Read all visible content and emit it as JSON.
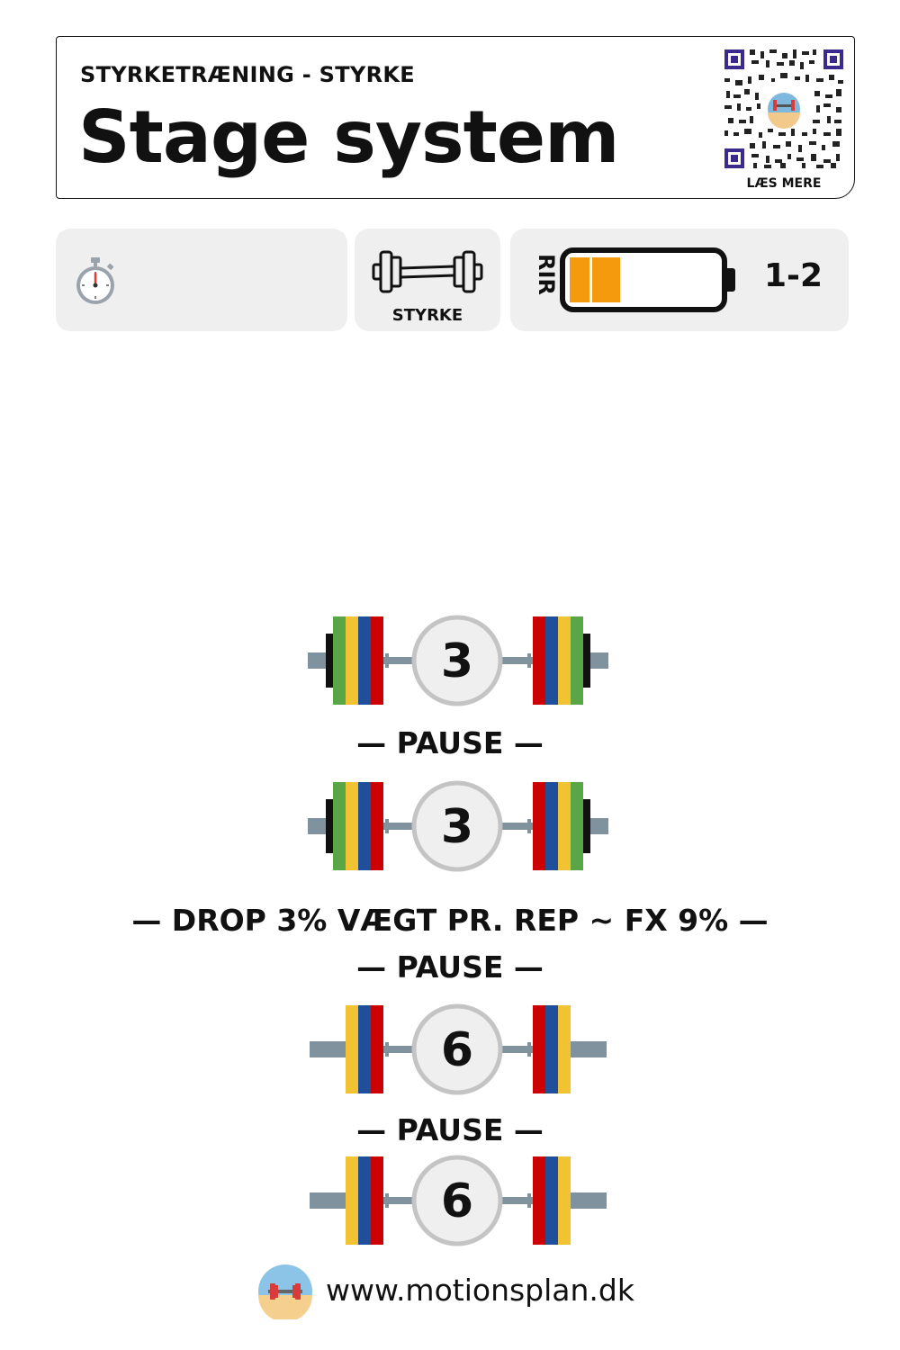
{
  "header": {
    "subtitle": "STYRKETRÆNING - STYRKE",
    "title": "Stage system",
    "qr_label": "LÆS MERE"
  },
  "info": {
    "timer_icon": "stopwatch-icon",
    "type_icon": "barbell-icon",
    "type_label": "STYRKE",
    "rir_label": "RIR",
    "rir_value": "1-2",
    "rir_battery_fill": 0.25,
    "rir_battery_color": "#f59a0c"
  },
  "sets": [
    {
      "reps": "3",
      "plates": [
        "#5aa646",
        "#f1c232",
        "#1f4e9a",
        "#cc0000"
      ],
      "collar": true
    },
    {
      "reps": "3",
      "plates": [
        "#5aa646",
        "#f1c232",
        "#1f4e9a",
        "#cc0000"
      ],
      "collar": true
    },
    {
      "reps": "6",
      "plates": [
        "#f1c232",
        "#1f4e9a",
        "#cc0000"
      ],
      "collar": false
    },
    {
      "reps": "6",
      "plates": [
        "#f1c232",
        "#1f4e9a",
        "#cc0000"
      ],
      "collar": false
    }
  ],
  "separators": {
    "pause_1": "— PAUSE —",
    "drop": "— DROP 3% VÆGT PR. REP ~ FX 9% —",
    "pause_2": "— PAUSE —",
    "pause_3": "— PAUSE —"
  },
  "footer": {
    "url": "www.motionsplan.dk"
  }
}
